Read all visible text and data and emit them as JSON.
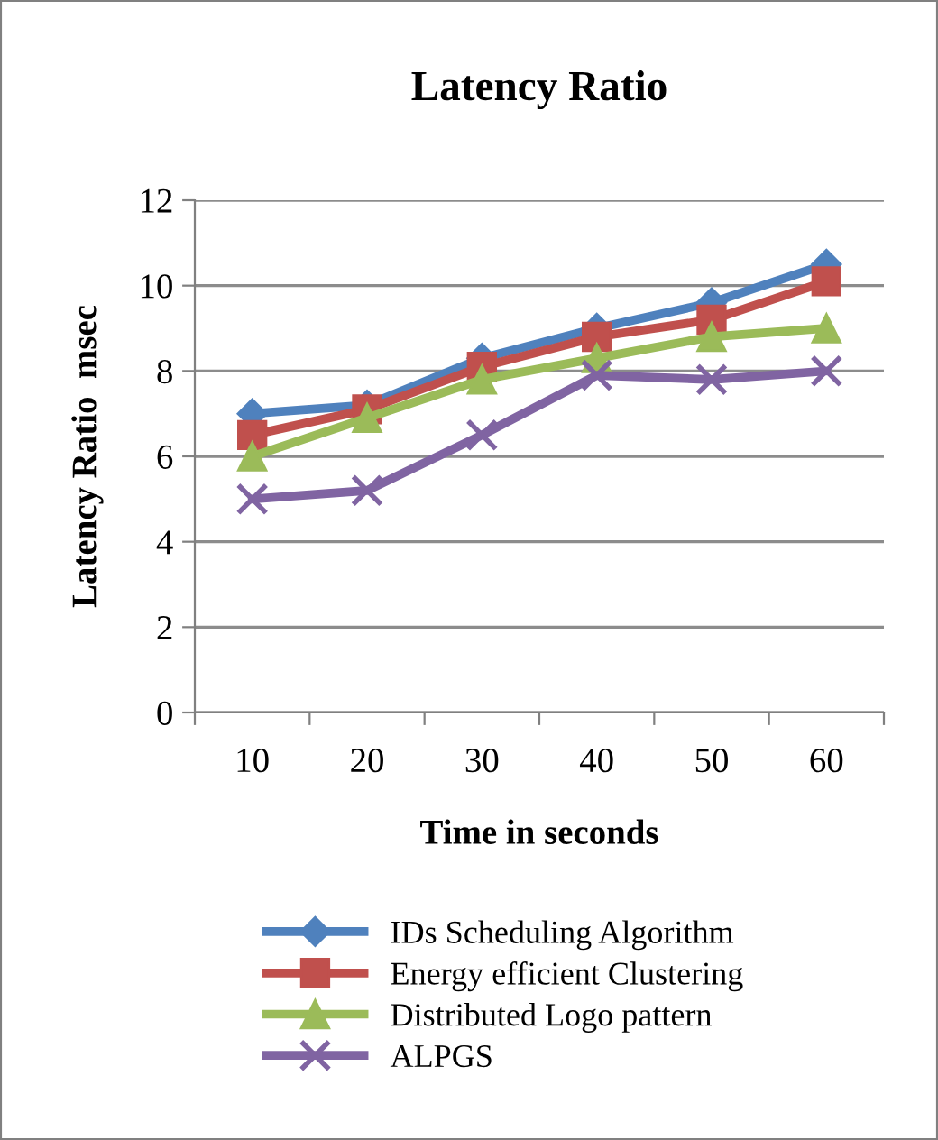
{
  "chart_data": {
    "type": "line",
    "title": "Latency Ratio",
    "xlabel": "Time in seconds",
    "ylabel": "Latency Ratio  msec",
    "categories": [
      "10",
      "20",
      "30",
      "40",
      "50",
      "60"
    ],
    "series": [
      {
        "name": "IDs Scheduling Algorithm",
        "color": "#4f81bd",
        "marker": "diamond",
        "values": [
          7.0,
          7.2,
          8.3,
          9.0,
          9.6,
          10.5
        ]
      },
      {
        "name": "Energy efficient Clustering",
        "color": "#c0504d",
        "marker": "square",
        "values": [
          6.5,
          7.1,
          8.1,
          8.8,
          9.2,
          10.1
        ]
      },
      {
        "name": "Distributed Logo pattern",
        "color": "#9bbb59",
        "marker": "triangle",
        "values": [
          6.0,
          6.9,
          7.8,
          8.3,
          8.8,
          9.0
        ]
      },
      {
        "name": "ALPGS",
        "color": "#8064a2",
        "marker": "cross",
        "values": [
          5.0,
          5.2,
          6.5,
          7.9,
          7.8,
          8.0
        ]
      }
    ],
    "ylim": [
      0,
      12
    ],
    "yticks": [
      0,
      2,
      4,
      6,
      8,
      10,
      12
    ],
    "grid": "y",
    "legend": "bottom",
    "line_style": "solid"
  }
}
